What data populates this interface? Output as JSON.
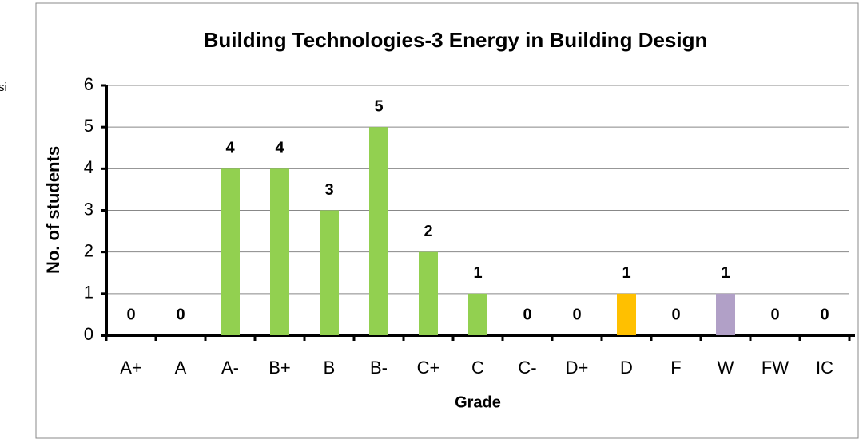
{
  "chart_data": {
    "type": "bar",
    "title": "Building Technologies-3 Energy in Building Design",
    "annotation": "si",
    "x_label": "Grade",
    "y_label": "No. of students",
    "categories": [
      "A+",
      "A",
      "A-",
      "B+",
      "B",
      "B-",
      "C+",
      "C",
      "C-",
      "D+",
      "D",
      "F",
      "W",
      "FW",
      "IC"
    ],
    "values": [
      0,
      0,
      4,
      4,
      3,
      5,
      2,
      1,
      0,
      0,
      1,
      0,
      1,
      0,
      0
    ],
    "colors": [
      "#92d050",
      "#92d050",
      "#92d050",
      "#92d050",
      "#92d050",
      "#92d050",
      "#92d050",
      "#92d050",
      "#92d050",
      "#92d050",
      "#ffc000",
      "#92d050",
      "#b1a0c7",
      "#92d050",
      "#92d050"
    ],
    "ylim": [
      0,
      6
    ],
    "yticks": [
      0,
      1,
      2,
      3,
      4,
      5,
      6
    ],
    "grid": true
  }
}
